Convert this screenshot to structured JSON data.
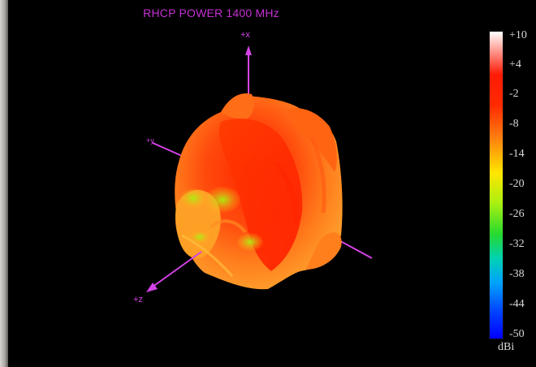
{
  "window": {
    "title": "RHCP POWER 1400  MHz"
  },
  "axes": {
    "x_label": "+x",
    "y_label": "+y",
    "z_label": "+z"
  },
  "color_scale": {
    "unit": "dBi",
    "ticks": [
      "+10",
      "+4",
      "-2",
      "-8",
      "-14",
      "-20",
      "-26",
      "-32",
      "-38",
      "-44",
      "-50"
    ],
    "colors": [
      "#ffffff",
      "#ff1b05",
      "#ff2a00",
      "#ff7a10",
      "#ffe600",
      "#a8f011",
      "#26d92f",
      "#00d1b4",
      "#00a1ff",
      "#0045ff",
      "#0000ff"
    ]
  },
  "pattern": {
    "accent_colors": {
      "main": "#ff4a0d",
      "mid": "#ff7a1b",
      "warm": "#ffb21a",
      "cool": "#9fe53a",
      "axis": "#d443e6"
    }
  }
}
